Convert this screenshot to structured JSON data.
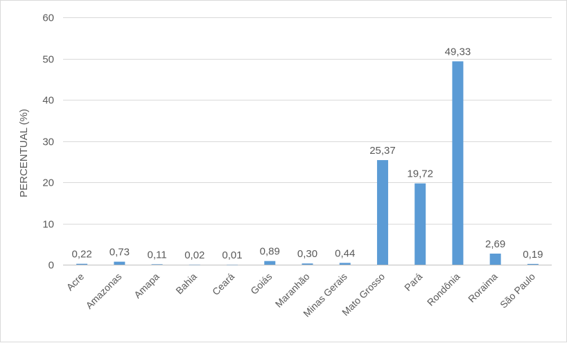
{
  "chart_data": {
    "type": "bar",
    "ylabel": "PERCENTUAL (%)",
    "xlabel": "",
    "ylim": [
      0,
      60
    ],
    "yticks": [
      0,
      10,
      20,
      30,
      40,
      50,
      60
    ],
    "grid": true,
    "legend": "none",
    "bar_color": "#5b9bd5",
    "categories": [
      "Acre",
      "Amazonas",
      "Amapa",
      "Bahia",
      "Ceará",
      "Goiás",
      "Maranhão",
      "Minas Gerais",
      "Mato Grosso",
      "Pará",
      "Rondônia",
      "Roraima",
      "São Paulo"
    ],
    "values": [
      0.22,
      0.73,
      0.11,
      0.02,
      0.01,
      0.89,
      0.3,
      0.44,
      25.37,
      19.72,
      49.33,
      2.69,
      0.19
    ],
    "data_labels": [
      "0,22",
      "0,73",
      "0,11",
      "0,02",
      "0,01",
      "0,89",
      "0,30",
      "0,44",
      "25,37",
      "19,72",
      "49,33",
      "2,69",
      "0,19"
    ]
  }
}
